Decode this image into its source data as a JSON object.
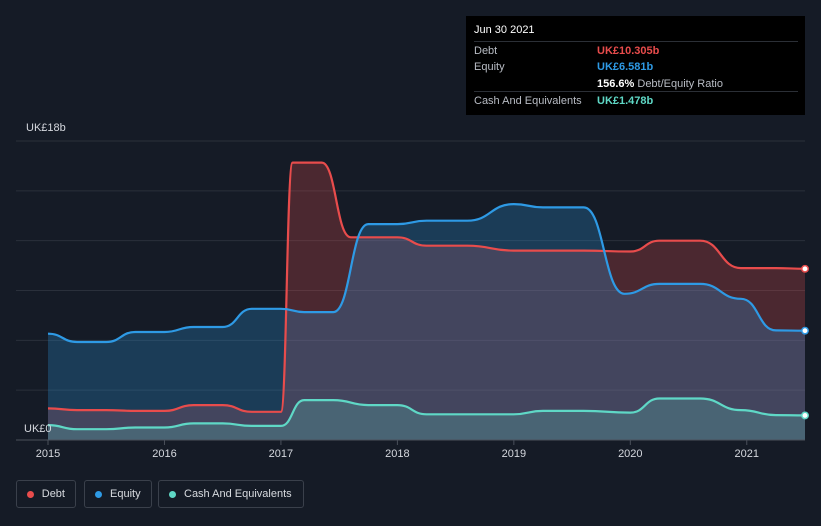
{
  "chart_data": {
    "type": "area",
    "title": "",
    "y_axis": {
      "top_label": "UK£18b",
      "bottom_label": "UK£0",
      "ylim": [
        0,
        18
      ]
    },
    "x_ticks": [
      "2015",
      "2016",
      "2017",
      "2018",
      "2019",
      "2020",
      "2021"
    ],
    "xlim": [
      2015.0,
      2021.5
    ],
    "series": [
      {
        "name": "Debt",
        "color": "#e84c4c",
        "points": [
          [
            2015.0,
            1.9
          ],
          [
            2015.25,
            1.8
          ],
          [
            2015.5,
            1.8
          ],
          [
            2015.75,
            1.75
          ],
          [
            2016.0,
            1.75
          ],
          [
            2016.25,
            2.1
          ],
          [
            2016.5,
            2.1
          ],
          [
            2016.75,
            1.7
          ],
          [
            2017.0,
            1.7
          ],
          [
            2017.1,
            16.7
          ],
          [
            2017.35,
            16.7
          ],
          [
            2017.6,
            12.2
          ],
          [
            2018.0,
            12.2
          ],
          [
            2018.25,
            11.7
          ],
          [
            2018.6,
            11.7
          ],
          [
            2019.0,
            11.4
          ],
          [
            2019.25,
            11.4
          ],
          [
            2019.6,
            11.4
          ],
          [
            2020.0,
            11.35
          ],
          [
            2020.25,
            12.0
          ],
          [
            2020.6,
            12.0
          ],
          [
            2020.95,
            10.35
          ],
          [
            2021.25,
            10.35
          ],
          [
            2021.5,
            10.305
          ]
        ]
      },
      {
        "name": "Equity",
        "color": "#2e9ae5",
        "points": [
          [
            2015.0,
            6.4
          ],
          [
            2015.25,
            5.9
          ],
          [
            2015.5,
            5.9
          ],
          [
            2015.75,
            6.5
          ],
          [
            2016.0,
            6.5
          ],
          [
            2016.25,
            6.8
          ],
          [
            2016.5,
            6.8
          ],
          [
            2016.75,
            7.9
          ],
          [
            2017.0,
            7.9
          ],
          [
            2017.2,
            7.7
          ],
          [
            2017.45,
            7.7
          ],
          [
            2017.75,
            13.0
          ],
          [
            2018.0,
            13.0
          ],
          [
            2018.25,
            13.2
          ],
          [
            2018.6,
            13.2
          ],
          [
            2019.0,
            14.2
          ],
          [
            2019.25,
            14.0
          ],
          [
            2019.6,
            14.0
          ],
          [
            2019.95,
            8.8
          ],
          [
            2020.25,
            9.4
          ],
          [
            2020.6,
            9.4
          ],
          [
            2020.95,
            8.5
          ],
          [
            2021.25,
            6.6
          ],
          [
            2021.5,
            6.581
          ]
        ]
      },
      {
        "name": "Cash And Equivalents",
        "color": "#5fd8c6",
        "points": [
          [
            2015.0,
            0.9
          ],
          [
            2015.25,
            0.65
          ],
          [
            2015.5,
            0.65
          ],
          [
            2015.75,
            0.75
          ],
          [
            2016.0,
            0.75
          ],
          [
            2016.25,
            1.0
          ],
          [
            2016.5,
            1.0
          ],
          [
            2016.75,
            0.85
          ],
          [
            2017.0,
            0.85
          ],
          [
            2017.2,
            2.4
          ],
          [
            2017.45,
            2.4
          ],
          [
            2017.75,
            2.1
          ],
          [
            2018.0,
            2.1
          ],
          [
            2018.25,
            1.55
          ],
          [
            2018.6,
            1.55
          ],
          [
            2019.0,
            1.55
          ],
          [
            2019.25,
            1.75
          ],
          [
            2019.6,
            1.75
          ],
          [
            2020.0,
            1.65
          ],
          [
            2020.25,
            2.5
          ],
          [
            2020.6,
            2.5
          ],
          [
            2020.95,
            1.8
          ],
          [
            2021.25,
            1.5
          ],
          [
            2021.5,
            1.478
          ]
        ]
      }
    ],
    "tooltip": {
      "date": "Jun 30 2021",
      "rows": [
        {
          "label": "Debt",
          "value": "UK£10.305b",
          "color": "#e84c4c"
        },
        {
          "label": "Equity",
          "value": "UK£6.581b",
          "color": "#2e9ae5"
        },
        {
          "label": "",
          "value": "156.6%",
          "extra": "Debt/Equity Ratio",
          "color": "#ffffff"
        },
        {
          "label": "Cash And Equivalents",
          "value": "UK£1.478b",
          "color": "#5fd8c6"
        }
      ]
    },
    "legend": [
      "Debt",
      "Equity",
      "Cash And Equivalents"
    ],
    "colors": {
      "background": "#151b26",
      "grid": "#2a303b",
      "axis": "#4a505b"
    }
  }
}
